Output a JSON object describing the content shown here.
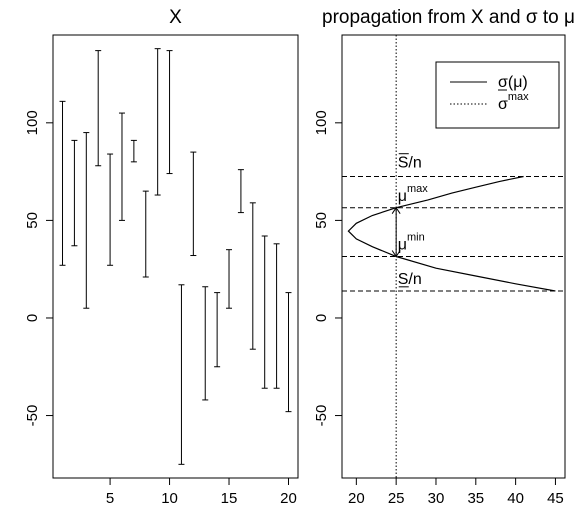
{
  "chart_data": [
    {
      "type": "errorbar",
      "title": "X",
      "xlabel": "",
      "ylabel": "",
      "xlim": [
        0.2,
        20.8
      ],
      "ylim": [
        -82,
        145
      ],
      "x_ticks": [
        5,
        10,
        15,
        20
      ],
      "y_ticks": [
        -50,
        0,
        50,
        100
      ],
      "grid": false,
      "intervals": [
        {
          "x": 1,
          "low": 27,
          "high": 111
        },
        {
          "x": 2,
          "low": 37,
          "high": 91
        },
        {
          "x": 3,
          "low": 5,
          "high": 95
        },
        {
          "x": 4,
          "low": 78,
          "high": 137
        },
        {
          "x": 5,
          "low": 27,
          "high": 84
        },
        {
          "x": 6,
          "low": 50,
          "high": 105
        },
        {
          "x": 7,
          "low": 80,
          "high": 91
        },
        {
          "x": 8,
          "low": 21,
          "high": 65
        },
        {
          "x": 9,
          "low": 63,
          "high": 138
        },
        {
          "x": 10,
          "low": 74,
          "high": 137
        },
        {
          "x": 11,
          "low": -75,
          "high": 17
        },
        {
          "x": 12,
          "low": 32,
          "high": 85
        },
        {
          "x": 13,
          "low": -42,
          "high": 16
        },
        {
          "x": 14,
          "low": -25,
          "high": 13
        },
        {
          "x": 15,
          "low": 5,
          "high": 35
        },
        {
          "x": 16,
          "low": 54,
          "high": 76
        },
        {
          "x": 17,
          "low": -16,
          "high": 59
        },
        {
          "x": 18,
          "low": -36,
          "high": 42
        },
        {
          "x": 19,
          "low": -36,
          "high": 38
        },
        {
          "x": 20,
          "low": -48,
          "high": 13
        }
      ]
    },
    {
      "type": "line",
      "title": "propagation from X and σ to μ",
      "xlabel": "",
      "ylabel": "",
      "xlim": [
        18.2,
        46.2
      ],
      "ylim": [
        -82,
        145
      ],
      "x_ticks": [
        20,
        25,
        30,
        35,
        40,
        45
      ],
      "y_ticks": [
        -50,
        0,
        50,
        100
      ],
      "grid": false,
      "legend": {
        "position": "top-right",
        "entries": [
          {
            "label_main": "σ",
            "label_arg": "(μ)",
            "style": "solid"
          },
          {
            "label_main": "σ",
            "label_sup": "max",
            "style": "dotted"
          }
        ]
      },
      "series": [
        {
          "name": "σ(μ)",
          "style": "solid",
          "points": [
            [
              41,
              72.5
            ],
            [
              38,
              70
            ],
            [
              35,
              67
            ],
            [
              32,
              64
            ],
            [
              29,
              60.5
            ],
            [
              25,
              56.5
            ],
            [
              22,
              52.5
            ],
            [
              20,
              48.5
            ],
            [
              19,
              44.5
            ],
            [
              20,
              40.5
            ],
            [
              22,
              36.5
            ],
            [
              25,
              31.5
            ],
            [
              30,
              25.5
            ],
            [
              35,
              21.5
            ],
            [
              40,
              17.5
            ],
            [
              45,
              13.8
            ]
          ]
        }
      ],
      "vertical_lines": [
        {
          "x": 25,
          "style": "dotted"
        }
      ],
      "horizontal_lines": [
        {
          "y": 72.5,
          "style": "dashed"
        },
        {
          "y": 56.5,
          "style": "dashed"
        },
        {
          "y": 31.5,
          "style": "dashed"
        },
        {
          "y": 13.8,
          "style": "dashed"
        }
      ],
      "arrow": {
        "x": 25,
        "from": 31.5,
        "to": 56.5
      },
      "annotations": [
        {
          "x": 25.2,
          "y": 77,
          "main": "S",
          "rest": "/n",
          "overline": true
        },
        {
          "x": 25.2,
          "y": 60,
          "main": "μ",
          "sup": "max"
        },
        {
          "x": 25.2,
          "y": 35,
          "main": "μ",
          "sup": "min"
        },
        {
          "x": 25.2,
          "y": 17.5,
          "main": "S",
          "rest": "/n",
          "underline": true
        }
      ]
    }
  ]
}
